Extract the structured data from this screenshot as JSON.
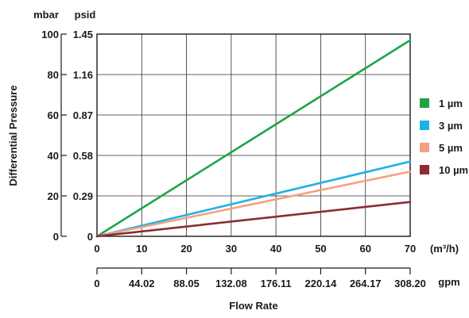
{
  "chart_data": {
    "type": "line",
    "xlabel": "Flow Rate",
    "ylabel": "Differential Pressure",
    "x_unit": "(m³/h)",
    "x_secondary_unit": "gpm",
    "y_unit": "mbar",
    "y_secondary_unit": "psid",
    "xlim": [
      0,
      70
    ],
    "ylim": [
      0,
      100
    ],
    "grid": true,
    "legend_position": "right",
    "x_ticks": [
      "0",
      "10",
      "20",
      "30",
      "40",
      "50",
      "60",
      "70"
    ],
    "x_secondary_ticks": [
      "0",
      "44.02",
      "88.05",
      "132.08",
      "176.11",
      "220.14",
      "264.17",
      "308.20"
    ],
    "y_ticks": [
      "0",
      "20",
      "40",
      "60",
      "80",
      "100"
    ],
    "y_secondary_ticks": [
      "0",
      "0.29",
      "0.58",
      "0.87",
      "1.16",
      "1.45"
    ],
    "series": [
      {
        "name": "1 µm",
        "color": "#1fa34a",
        "x": [
          0,
          70
        ],
        "y": [
          0,
          97
        ]
      },
      {
        "name": "3 µm",
        "color": "#1fb1e6",
        "x": [
          0,
          70
        ],
        "y": [
          0,
          37
        ]
      },
      {
        "name": "5 µm",
        "color": "#f4a081",
        "x": [
          0,
          70
        ],
        "y": [
          0,
          32
        ]
      },
      {
        "name": "10 µm",
        "color": "#8b2b35",
        "x": [
          0,
          70
        ],
        "y": [
          0,
          17
        ]
      }
    ]
  }
}
